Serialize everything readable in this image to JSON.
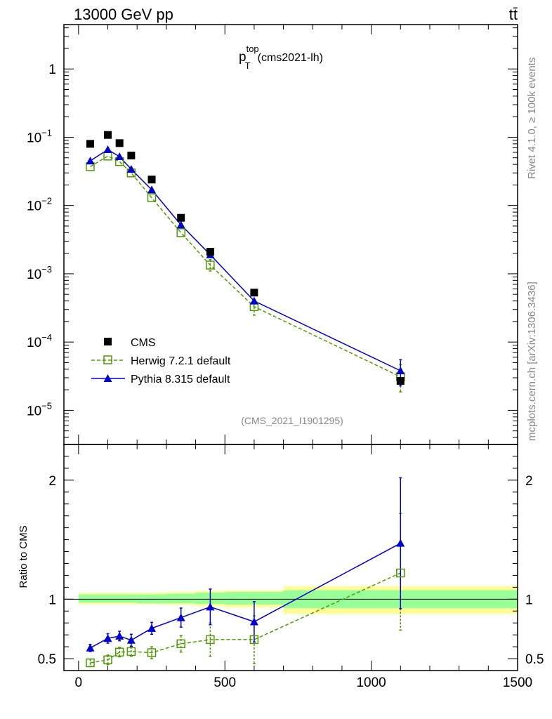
{
  "header": {
    "left": "13000 GeV pp",
    "right": "tt̄"
  },
  "side": {
    "rivet": "Rivet 4.1.0, ≥ 100k events",
    "mcplots": "mcplots.cern.ch [arXiv:1306.3436]"
  },
  "chart_data": {
    "type": "line",
    "title_main": "p",
    "title_sup": "top",
    "title_sub": "T",
    "title_rest": "(cms2021-lh)",
    "watermark": "(CMS_2021_I1901295)",
    "xlim": [
      -50,
      1500
    ],
    "x_ticks": [
      0,
      500,
      1000,
      1500
    ],
    "top_ylim_log10": [
      -5.5,
      0.65
    ],
    "top_y_ticks": [
      {
        "exp": 0,
        "label": "1"
      },
      {
        "exp": -1,
        "label": "10",
        "sup": "−1"
      },
      {
        "exp": -2,
        "label": "10",
        "sup": "−2"
      },
      {
        "exp": -3,
        "label": "10",
        "sup": "−3"
      },
      {
        "exp": -4,
        "label": "10",
        "sup": "−4"
      },
      {
        "exp": -5,
        "label": "10",
        "sup": "−5"
      }
    ],
    "ratio_ylabel": "Ratio to CMS",
    "ratio_ylim": [
      0.4,
      2.3
    ],
    "ratio_y_ticks": [
      {
        "v": 0.5,
        "label": "0.5"
      },
      {
        "v": 1,
        "label": "1"
      },
      {
        "v": 2,
        "label": "2"
      }
    ],
    "legend": {
      "cms": "CMS",
      "herwig": "Herwig 7.2.1 default",
      "pythia": "Pythia 8.315 default"
    },
    "x": [
      40,
      100,
      140,
      180,
      250,
      350,
      450,
      600,
      1100
    ],
    "series": [
      {
        "name": "CMS",
        "values": [
          0.08,
          0.108,
          0.082,
          0.054,
          0.024,
          0.0066,
          0.0021,
          0.00053,
          2.7e-05
        ]
      },
      {
        "name": "Herwig 7.2.1 default",
        "values": [
          0.037,
          0.053,
          0.044,
          0.03,
          0.013,
          0.004,
          0.00134,
          0.00033,
          3.1e-05
        ],
        "ratio": [
          0.465,
          0.49,
          0.555,
          0.56,
          0.55,
          0.625,
          0.66,
          0.66,
          1.22
        ],
        "ratio_err_up": [
          0.03,
          0.04,
          0.04,
          0.04,
          0.05,
          0.07,
          0.14,
          0.2,
          0.5
        ],
        "ratio_err_down": [
          0.03,
          0.04,
          0.04,
          0.04,
          0.05,
          0.07,
          0.14,
          0.2,
          0.48
        ]
      },
      {
        "name": "Pythia 8.315 default",
        "values": [
          0.045,
          0.066,
          0.052,
          0.034,
          0.017,
          0.0052,
          0.0019,
          0.0004,
          3.8e-05
        ],
        "ratio": [
          0.59,
          0.67,
          0.69,
          0.655,
          0.755,
          0.845,
          0.935,
          0.81,
          1.47
        ],
        "ratio_err_up": [
          0.03,
          0.04,
          0.04,
          0.05,
          0.05,
          0.08,
          0.15,
          0.17,
          0.55
        ],
        "ratio_err_down": [
          0.03,
          0.04,
          0.04,
          0.05,
          0.05,
          0.08,
          0.15,
          0.17,
          0.55
        ]
      }
    ],
    "bands": [
      {
        "x0": 0,
        "x1": 200,
        "yellow": [
          0.955,
          1.055
        ],
        "green": [
          0.97,
          1.04
        ]
      },
      {
        "x0": 200,
        "x1": 300,
        "yellow": [
          0.955,
          1.055
        ],
        "green": [
          0.965,
          1.04
        ]
      },
      {
        "x0": 300,
        "x1": 400,
        "yellow": [
          0.95,
          1.06
        ],
        "green": [
          0.965,
          1.045
        ]
      },
      {
        "x0": 400,
        "x1": 500,
        "yellow": [
          0.94,
          1.07
        ],
        "green": [
          0.96,
          1.055
        ]
      },
      {
        "x0": 500,
        "x1": 700,
        "yellow": [
          0.93,
          1.075
        ],
        "green": [
          0.955,
          1.06
        ]
      },
      {
        "x0": 700,
        "x1": 1500,
        "yellow": [
          0.875,
          1.11
        ],
        "green": [
          0.925,
          1.075
        ]
      }
    ],
    "colors": {
      "cms": "#000000",
      "herwig": "#4e9a06",
      "pythia": "#0000cc",
      "band_yellow": "#ffff99",
      "band_green": "#99ff99"
    }
  }
}
